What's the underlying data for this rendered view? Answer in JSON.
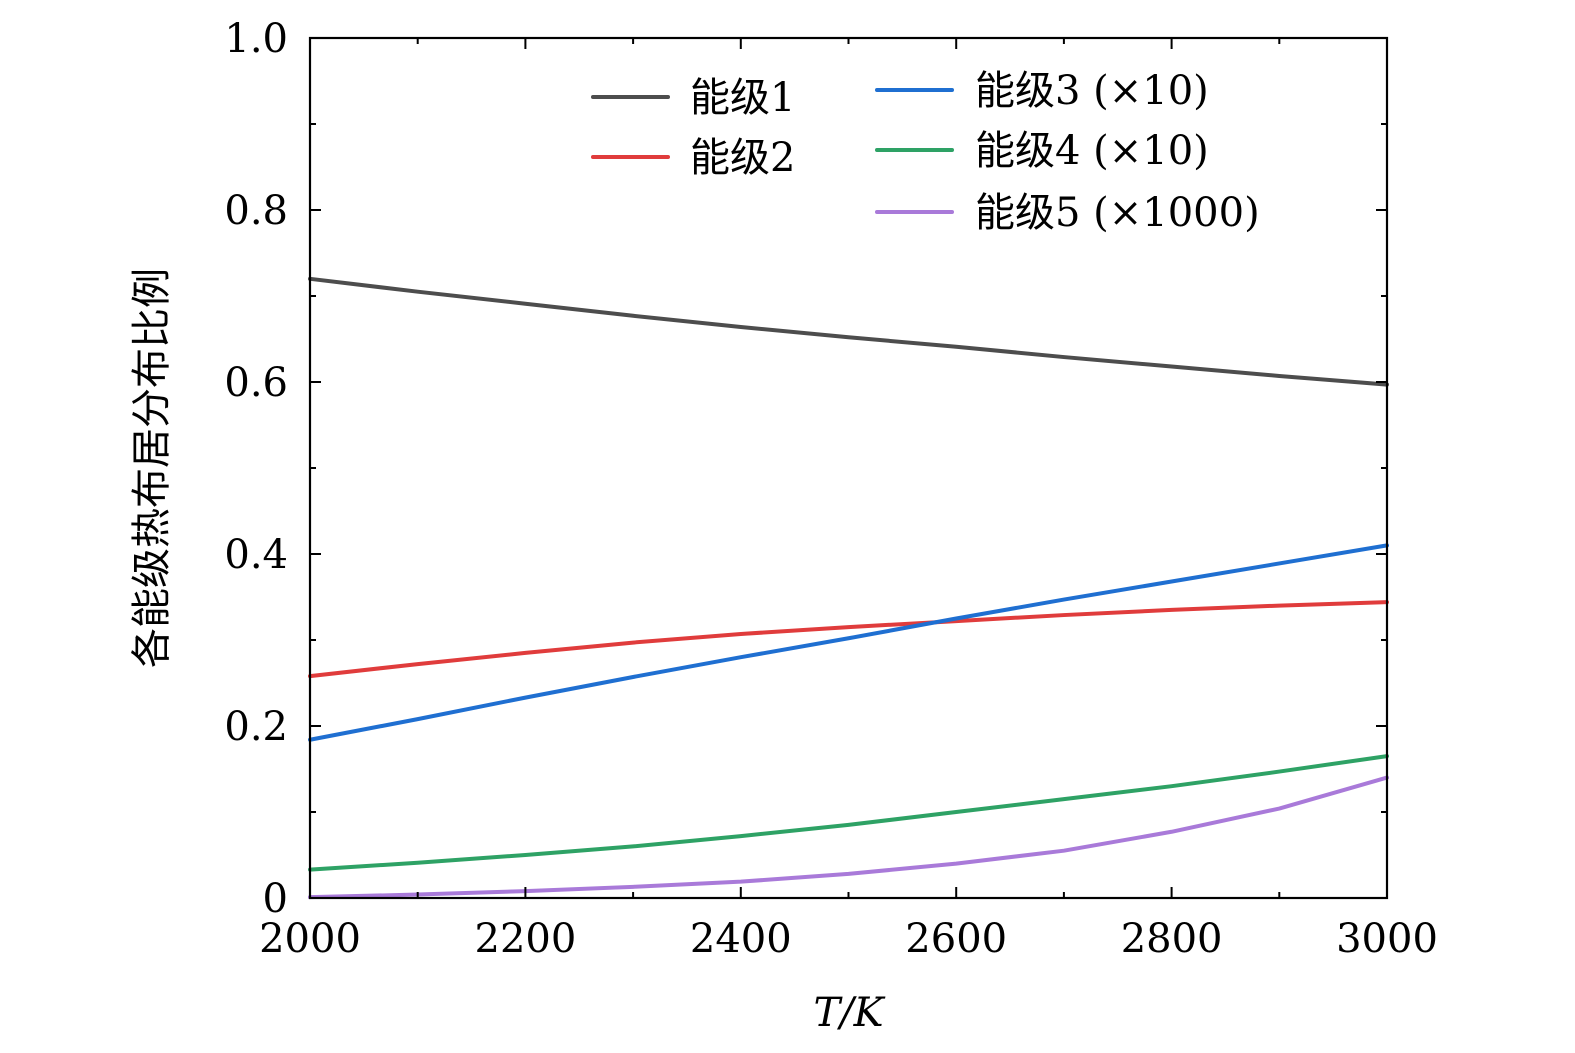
{
  "chart_data": {
    "type": "line",
    "title": "",
    "xlabel": "T/K",
    "ylabel": "各能级热布居分布比例",
    "xlim": [
      2000,
      3000
    ],
    "ylim": [
      0,
      1.0
    ],
    "xticks": [
      2000,
      2200,
      2400,
      2600,
      2800,
      3000
    ],
    "xtick_labels": [
      "2000",
      "2200",
      "2400",
      "2600",
      "2800",
      "3000"
    ],
    "yticks": [
      0,
      0.2,
      0.4,
      0.6,
      0.8,
      1.0
    ],
    "ytick_labels": [
      "0",
      "0.2",
      "0.4",
      "0.6",
      "0.8",
      "1.0"
    ],
    "x_minor_step": 100,
    "y_minor_step": 0.1,
    "grid": false,
    "legend_position": "top-right",
    "x": [
      2000,
      2100,
      2200,
      2300,
      2400,
      2500,
      2600,
      2700,
      2800,
      2900,
      3000
    ],
    "series": [
      {
        "name": "能级1",
        "color": "#4d4d4d",
        "values": [
          0.72,
          0.705,
          0.691,
          0.677,
          0.664,
          0.652,
          0.641,
          0.629,
          0.618,
          0.607,
          0.597
        ]
      },
      {
        "name": "能级2",
        "color": "#e03c3c",
        "values": [
          0.258,
          0.272,
          0.285,
          0.297,
          0.307,
          0.315,
          0.322,
          0.329,
          0.335,
          0.34,
          0.344
        ]
      },
      {
        "name": "能级3 (×10)",
        "color": "#1f6fd1",
        "values": [
          0.184,
          0.208,
          0.233,
          0.257,
          0.28,
          0.302,
          0.325,
          0.347,
          0.368,
          0.389,
          0.41
        ]
      },
      {
        "name": "能级4 (×10)",
        "color": "#2ea265",
        "values": [
          0.033,
          0.041,
          0.05,
          0.06,
          0.072,
          0.085,
          0.1,
          0.115,
          0.13,
          0.147,
          0.165
        ]
      },
      {
        "name": "能级5 (×1000)",
        "color": "#a97ad9",
        "values": [
          0.001,
          0.004,
          0.008,
          0.013,
          0.019,
          0.028,
          0.04,
          0.055,
          0.077,
          0.104,
          0.14
        ]
      }
    ]
  }
}
